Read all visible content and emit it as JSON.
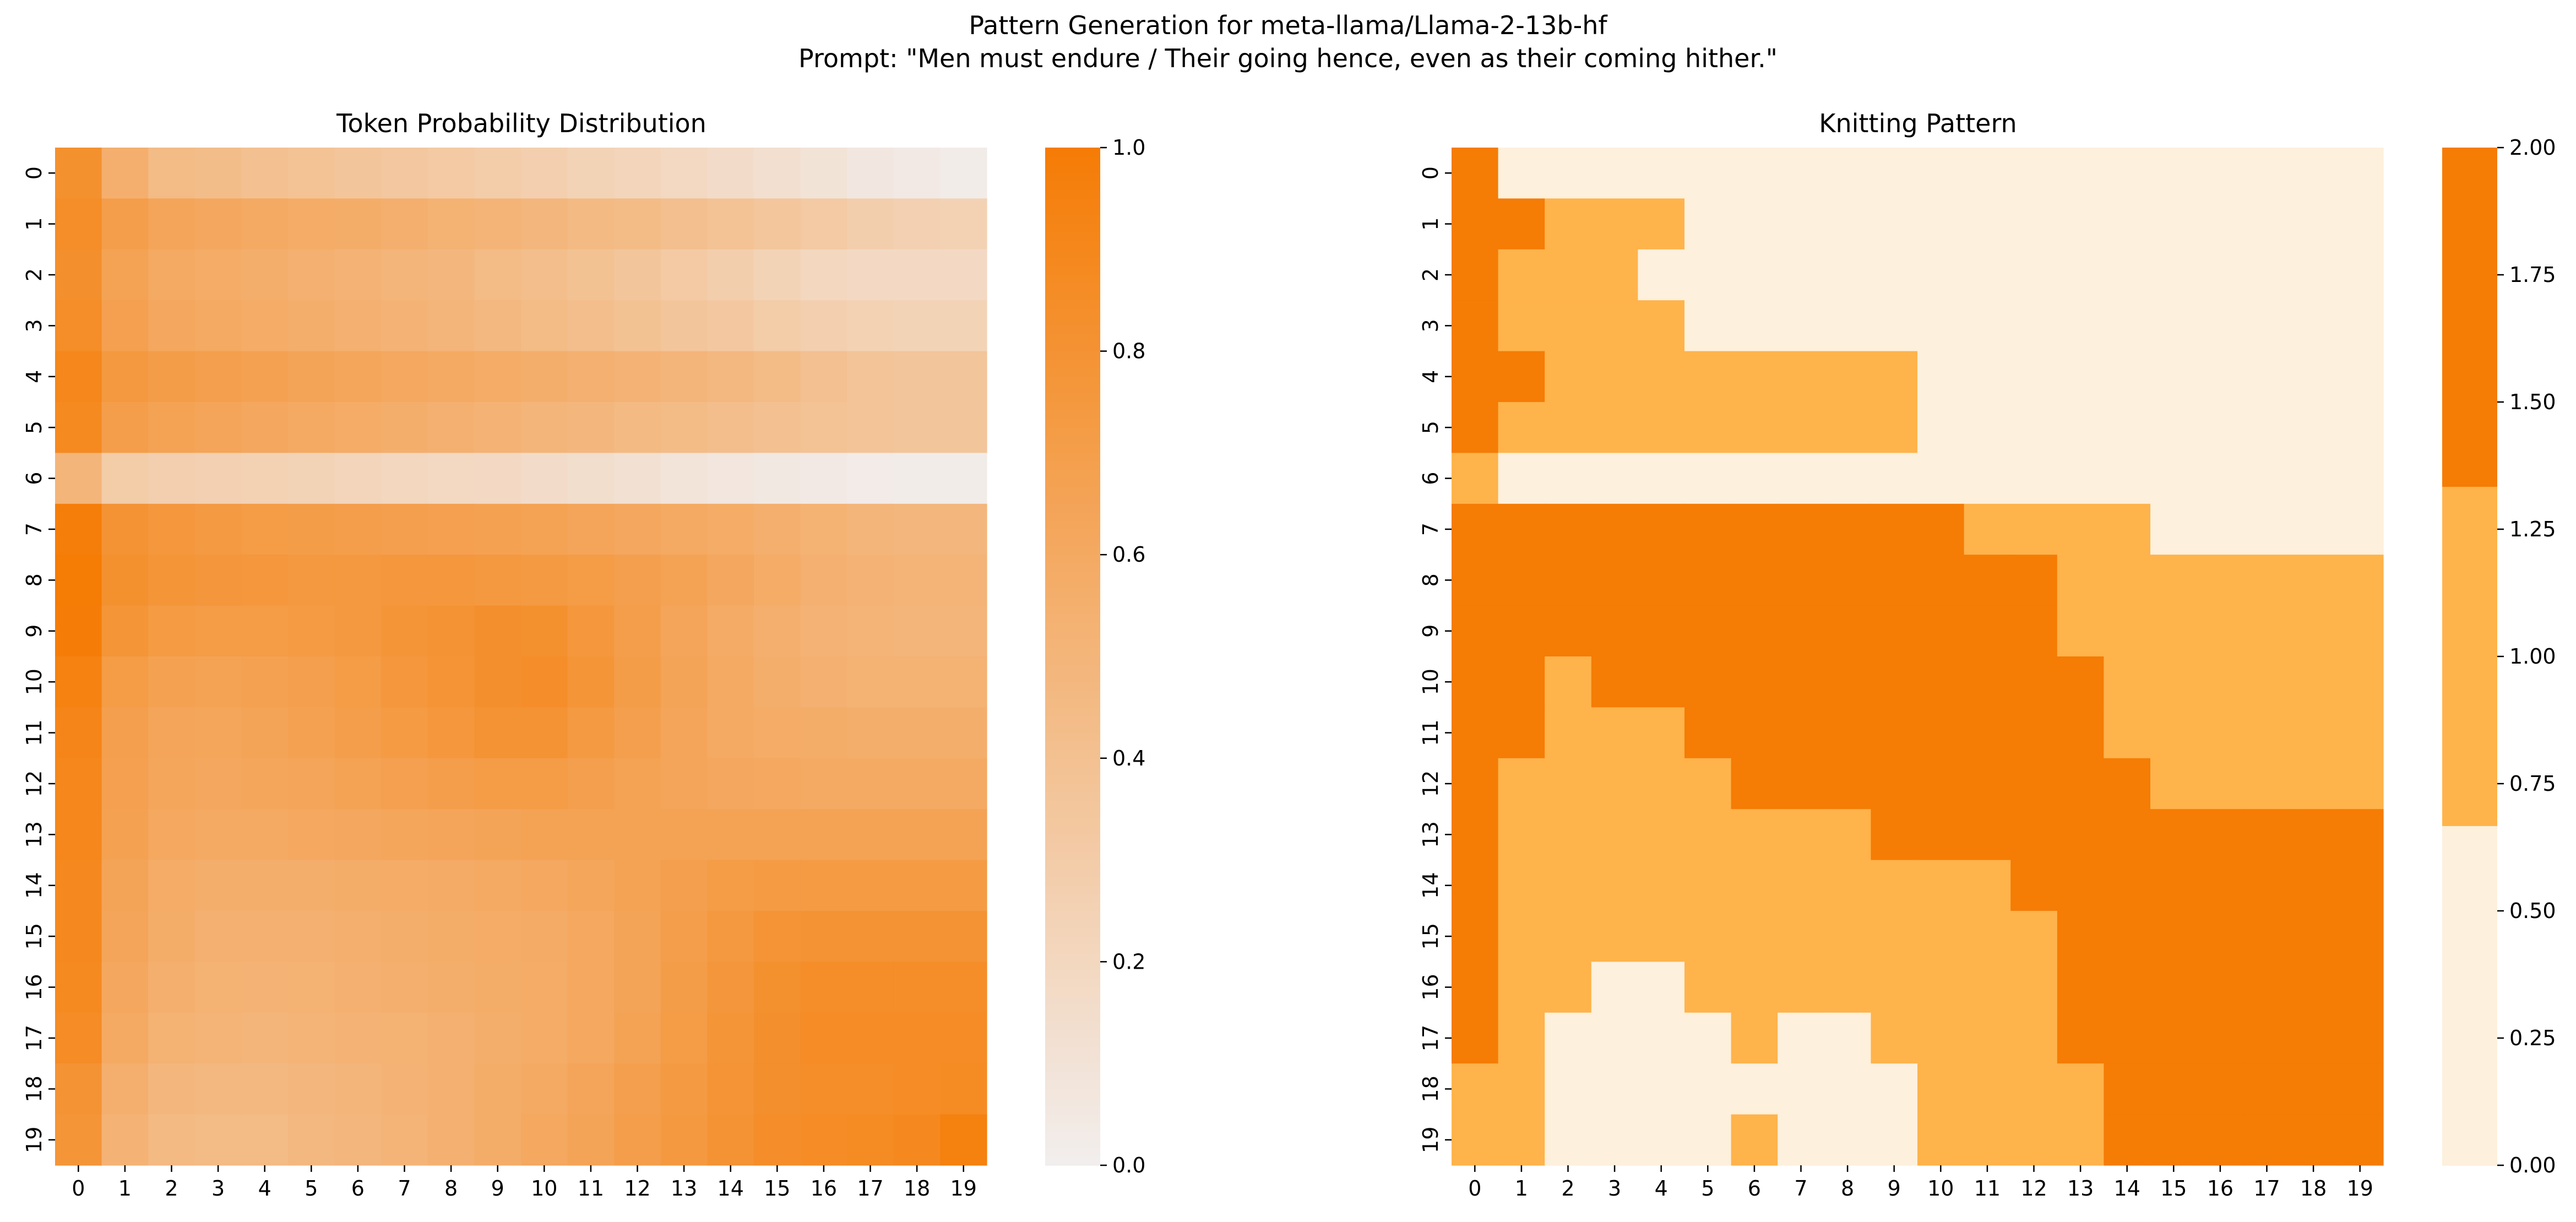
{
  "figure": {
    "suptitle_line1": "Pattern Generation for meta-llama/Llama-2-13b-hf",
    "suptitle_line2": "Prompt: \"Men must endure / Their going hence, even as their coming hither.\""
  },
  "colors": {
    "low": "#f2eeee",
    "high": "#f57c05",
    "knit_0": "#fdf0dc",
    "knit_1": "#ffb34b",
    "knit_2": "#f57c05"
  },
  "chart_data": [
    {
      "type": "heatmap",
      "title": "Token Probability Distribution",
      "x": [
        "0",
        "1",
        "2",
        "3",
        "4",
        "5",
        "6",
        "7",
        "8",
        "9",
        "10",
        "11",
        "12",
        "13",
        "14",
        "15",
        "16",
        "17",
        "18",
        "19"
      ],
      "y": [
        "0",
        "1",
        "2",
        "3",
        "4",
        "5",
        "6",
        "7",
        "8",
        "9",
        "10",
        "11",
        "12",
        "13",
        "14",
        "15",
        "16",
        "17",
        "18",
        "19"
      ],
      "colorbar": {
        "range": [
          0,
          1
        ],
        "ticks": [
          "0.0",
          "0.2",
          "0.4",
          "0.6",
          "0.8",
          "1.0"
        ],
        "tick_values": [
          0,
          0.2,
          0.4,
          0.6,
          0.8,
          1.0
        ]
      },
      "values": [
        [
          0.82,
          0.55,
          0.45,
          0.43,
          0.4,
          0.38,
          0.36,
          0.34,
          0.32,
          0.29,
          0.27,
          0.24,
          0.22,
          0.19,
          0.16,
          0.13,
          0.1,
          0.06,
          0.04,
          0.02
        ],
        [
          0.85,
          0.7,
          0.64,
          0.62,
          0.6,
          0.58,
          0.57,
          0.55,
          0.53,
          0.51,
          0.49,
          0.46,
          0.44,
          0.41,
          0.38,
          0.35,
          0.32,
          0.28,
          0.26,
          0.25
        ],
        [
          0.83,
          0.66,
          0.6,
          0.58,
          0.56,
          0.54,
          0.52,
          0.5,
          0.48,
          0.45,
          0.42,
          0.39,
          0.36,
          0.32,
          0.28,
          0.24,
          0.2,
          0.18,
          0.18,
          0.18
        ],
        [
          0.85,
          0.68,
          0.62,
          0.6,
          0.58,
          0.56,
          0.54,
          0.52,
          0.5,
          0.47,
          0.45,
          0.42,
          0.39,
          0.36,
          0.33,
          0.3,
          0.27,
          0.25,
          0.24,
          0.24
        ],
        [
          0.9,
          0.75,
          0.71,
          0.69,
          0.67,
          0.65,
          0.63,
          0.61,
          0.6,
          0.58,
          0.56,
          0.54,
          0.52,
          0.5,
          0.47,
          0.44,
          0.4,
          0.37,
          0.36,
          0.36
        ],
        [
          0.88,
          0.7,
          0.66,
          0.64,
          0.62,
          0.6,
          0.58,
          0.56,
          0.54,
          0.52,
          0.5,
          0.48,
          0.46,
          0.44,
          0.42,
          0.4,
          0.38,
          0.37,
          0.36,
          0.36
        ],
        [
          0.5,
          0.3,
          0.27,
          0.26,
          0.25,
          0.24,
          0.22,
          0.2,
          0.19,
          0.18,
          0.16,
          0.14,
          0.12,
          0.09,
          0.07,
          0.05,
          0.04,
          0.03,
          0.02,
          0.02
        ],
        [
          0.98,
          0.8,
          0.76,
          0.74,
          0.72,
          0.71,
          0.7,
          0.69,
          0.68,
          0.67,
          0.66,
          0.64,
          0.62,
          0.6,
          0.58,
          0.55,
          0.53,
          0.5,
          0.49,
          0.49
        ],
        [
          1.0,
          0.82,
          0.78,
          0.77,
          0.76,
          0.75,
          0.75,
          0.76,
          0.76,
          0.75,
          0.74,
          0.72,
          0.69,
          0.66,
          0.62,
          0.58,
          0.54,
          0.52,
          0.51,
          0.51
        ],
        [
          0.99,
          0.78,
          0.73,
          0.72,
          0.72,
          0.73,
          0.75,
          0.78,
          0.8,
          0.83,
          0.82,
          0.76,
          0.7,
          0.64,
          0.59,
          0.55,
          0.52,
          0.51,
          0.5,
          0.5
        ],
        [
          0.95,
          0.72,
          0.67,
          0.66,
          0.67,
          0.69,
          0.72,
          0.76,
          0.79,
          0.83,
          0.84,
          0.78,
          0.71,
          0.65,
          0.6,
          0.56,
          0.54,
          0.53,
          0.53,
          0.53
        ],
        [
          0.92,
          0.69,
          0.64,
          0.63,
          0.65,
          0.67,
          0.7,
          0.73,
          0.76,
          0.8,
          0.8,
          0.74,
          0.69,
          0.64,
          0.6,
          0.58,
          0.57,
          0.56,
          0.56,
          0.56
        ],
        [
          0.9,
          0.68,
          0.63,
          0.62,
          0.63,
          0.64,
          0.66,
          0.68,
          0.7,
          0.72,
          0.72,
          0.69,
          0.66,
          0.64,
          0.62,
          0.61,
          0.6,
          0.6,
          0.6,
          0.6
        ],
        [
          0.9,
          0.67,
          0.61,
          0.6,
          0.6,
          0.61,
          0.62,
          0.63,
          0.64,
          0.65,
          0.66,
          0.66,
          0.66,
          0.66,
          0.66,
          0.66,
          0.66,
          0.66,
          0.66,
          0.66
        ],
        [
          0.89,
          0.65,
          0.58,
          0.56,
          0.56,
          0.56,
          0.57,
          0.58,
          0.59,
          0.6,
          0.61,
          0.63,
          0.66,
          0.69,
          0.72,
          0.73,
          0.73,
          0.73,
          0.73,
          0.73
        ],
        [
          0.89,
          0.64,
          0.57,
          0.54,
          0.54,
          0.54,
          0.55,
          0.56,
          0.57,
          0.58,
          0.59,
          0.61,
          0.65,
          0.7,
          0.75,
          0.79,
          0.8,
          0.8,
          0.8,
          0.8
        ],
        [
          0.88,
          0.62,
          0.55,
          0.53,
          0.52,
          0.53,
          0.54,
          0.55,
          0.56,
          0.57,
          0.58,
          0.61,
          0.65,
          0.71,
          0.77,
          0.82,
          0.85,
          0.85,
          0.85,
          0.85
        ],
        [
          0.86,
          0.6,
          0.53,
          0.51,
          0.5,
          0.51,
          0.52,
          0.53,
          0.54,
          0.56,
          0.58,
          0.61,
          0.66,
          0.72,
          0.78,
          0.83,
          0.86,
          0.86,
          0.86,
          0.86
        ],
        [
          0.8,
          0.55,
          0.48,
          0.47,
          0.47,
          0.48,
          0.5,
          0.52,
          0.54,
          0.57,
          0.6,
          0.64,
          0.69,
          0.74,
          0.79,
          0.83,
          0.85,
          0.85,
          0.86,
          0.87
        ],
        [
          0.78,
          0.52,
          0.46,
          0.45,
          0.45,
          0.47,
          0.49,
          0.51,
          0.54,
          0.57,
          0.61,
          0.65,
          0.7,
          0.75,
          0.8,
          0.84,
          0.86,
          0.87,
          0.89,
          0.96
        ]
      ]
    },
    {
      "type": "heatmap",
      "title": "Knitting Pattern",
      "x": [
        "0",
        "1",
        "2",
        "3",
        "4",
        "5",
        "6",
        "7",
        "8",
        "9",
        "10",
        "11",
        "12",
        "13",
        "14",
        "15",
        "16",
        "17",
        "18",
        "19"
      ],
      "y": [
        "0",
        "1",
        "2",
        "3",
        "4",
        "5",
        "6",
        "7",
        "8",
        "9",
        "10",
        "11",
        "12",
        "13",
        "14",
        "15",
        "16",
        "17",
        "18",
        "19"
      ],
      "colorbar": {
        "range": [
          0,
          2
        ],
        "discrete_levels": 3,
        "ticks": [
          "0.00",
          "0.25",
          "0.50",
          "0.75",
          "1.00",
          "1.25",
          "1.50",
          "1.75",
          "2.00"
        ],
        "tick_values": [
          0,
          0.25,
          0.5,
          0.75,
          1.0,
          1.25,
          1.5,
          1.75,
          2.0
        ]
      },
      "values": [
        [
          2,
          0,
          0,
          0,
          0,
          0,
          0,
          0,
          0,
          0,
          0,
          0,
          0,
          0,
          0,
          0,
          0,
          0,
          0,
          0
        ],
        [
          2,
          2,
          1,
          1,
          1,
          0,
          0,
          0,
          0,
          0,
          0,
          0,
          0,
          0,
          0,
          0,
          0,
          0,
          0,
          0
        ],
        [
          2,
          1,
          1,
          1,
          0,
          0,
          0,
          0,
          0,
          0,
          0,
          0,
          0,
          0,
          0,
          0,
          0,
          0,
          0,
          0
        ],
        [
          2,
          1,
          1,
          1,
          1,
          0,
          0,
          0,
          0,
          0,
          0,
          0,
          0,
          0,
          0,
          0,
          0,
          0,
          0,
          0
        ],
        [
          2,
          2,
          1,
          1,
          1,
          1,
          1,
          1,
          1,
          1,
          0,
          0,
          0,
          0,
          0,
          0,
          0,
          0,
          0,
          0
        ],
        [
          2,
          1,
          1,
          1,
          1,
          1,
          1,
          1,
          1,
          1,
          0,
          0,
          0,
          0,
          0,
          0,
          0,
          0,
          0,
          0
        ],
        [
          1,
          0,
          0,
          0,
          0,
          0,
          0,
          0,
          0,
          0,
          0,
          0,
          0,
          0,
          0,
          0,
          0,
          0,
          0,
          0
        ],
        [
          2,
          2,
          2,
          2,
          2,
          2,
          2,
          2,
          2,
          2,
          2,
          1,
          1,
          1,
          1,
          0,
          0,
          0,
          0,
          0
        ],
        [
          2,
          2,
          2,
          2,
          2,
          2,
          2,
          2,
          2,
          2,
          2,
          2,
          2,
          1,
          1,
          1,
          1,
          1,
          1,
          1
        ],
        [
          2,
          2,
          2,
          2,
          2,
          2,
          2,
          2,
          2,
          2,
          2,
          2,
          2,
          1,
          1,
          1,
          1,
          1,
          1,
          1
        ],
        [
          2,
          2,
          1,
          2,
          2,
          2,
          2,
          2,
          2,
          2,
          2,
          2,
          2,
          2,
          1,
          1,
          1,
          1,
          1,
          1
        ],
        [
          2,
          2,
          1,
          1,
          1,
          2,
          2,
          2,
          2,
          2,
          2,
          2,
          2,
          2,
          1,
          1,
          1,
          1,
          1,
          1
        ],
        [
          2,
          1,
          1,
          1,
          1,
          1,
          2,
          2,
          2,
          2,
          2,
          2,
          2,
          2,
          2,
          1,
          1,
          1,
          1,
          1
        ],
        [
          2,
          1,
          1,
          1,
          1,
          1,
          1,
          1,
          1,
          2,
          2,
          2,
          2,
          2,
          2,
          2,
          2,
          2,
          2,
          2
        ],
        [
          2,
          1,
          1,
          1,
          1,
          1,
          1,
          1,
          1,
          1,
          1,
          1,
          2,
          2,
          2,
          2,
          2,
          2,
          2,
          2
        ],
        [
          2,
          1,
          1,
          1,
          1,
          1,
          1,
          1,
          1,
          1,
          1,
          1,
          1,
          2,
          2,
          2,
          2,
          2,
          2,
          2
        ],
        [
          2,
          1,
          1,
          0,
          0,
          1,
          1,
          1,
          1,
          1,
          1,
          1,
          1,
          2,
          2,
          2,
          2,
          2,
          2,
          2
        ],
        [
          2,
          1,
          0,
          0,
          0,
          0,
          1,
          0,
          0,
          1,
          1,
          1,
          1,
          2,
          2,
          2,
          2,
          2,
          2,
          2
        ],
        [
          1,
          1,
          0,
          0,
          0,
          0,
          0,
          0,
          0,
          0,
          1,
          1,
          1,
          1,
          2,
          2,
          2,
          2,
          2,
          2
        ],
        [
          1,
          1,
          0,
          0,
          0,
          0,
          1,
          0,
          0,
          0,
          1,
          1,
          1,
          1,
          2,
          2,
          2,
          2,
          2,
          2
        ]
      ]
    }
  ]
}
